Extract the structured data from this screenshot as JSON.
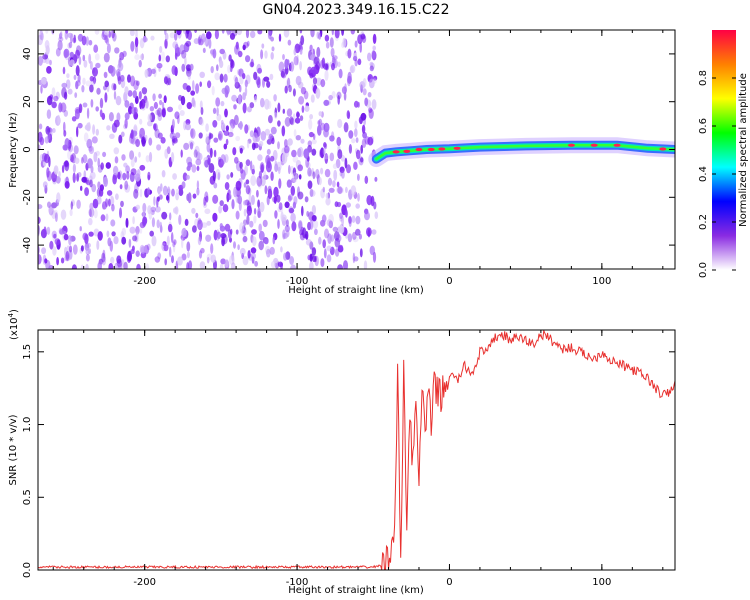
{
  "page_title": "GN04.2023.349.16.15.C22",
  "colors": {
    "signal_line": "#e8312f",
    "scatter_noise": "#7a1cf0",
    "colorbar_top": "#ff0044",
    "colorbar_bottom": "#ffffff"
  },
  "chart_data": [
    {
      "type": "heatmap",
      "title": "GN04.2023.349.16.15.C22",
      "xlabel": "Height of straight line (km)",
      "ylabel": "Frequency (Hz)",
      "xlim": [
        -270,
        148
      ],
      "ylim": [
        -50,
        50
      ],
      "xticks": [
        -200,
        -100,
        0,
        100
      ],
      "yticks": [
        -40,
        -20,
        0,
        20,
        40
      ],
      "tick_labels_x": [
        "-200",
        "-100",
        "0",
        "100"
      ],
      "tick_labels_y": [
        "-40",
        "-20",
        "0",
        "20",
        "40"
      ],
      "noise_region_x": [
        -270,
        -48
      ],
      "trace": {
        "x": [
          -48,
          -42,
          -35,
          -25,
          -15,
          0,
          20,
          50,
          80,
          110,
          130,
          148
        ],
        "y": [
          -4,
          -1.5,
          -1,
          -0.5,
          0,
          0.3,
          1,
          1.5,
          1.8,
          1.8,
          0.5,
          0
        ]
      },
      "colorbar": {
        "label": "Normalized spectral amplitude",
        "range": [
          0,
          1
        ],
        "ticks": [
          0.0,
          0.2,
          0.4,
          0.6,
          0.8
        ],
        "tick_labels": [
          "0.0",
          "0.2",
          "0.4",
          "0.6",
          "0.8"
        ],
        "stops": [
          "#ffffff",
          "#8a2be2",
          "#0000ff",
          "#00ffff",
          "#00ff00",
          "#ffff00",
          "#ff8000",
          "#ff0044"
        ]
      }
    },
    {
      "type": "line",
      "xlabel": "Height of straight line (km)",
      "ylabel": "SNR (10 * v/v)",
      "multiplier_label": "(x10",
      "multiplier_exp": "4",
      "multiplier_close": ")",
      "xlim": [
        -270,
        148
      ],
      "ylim": [
        0,
        1.65
      ],
      "xticks": [
        -200,
        -100,
        0,
        100
      ],
      "yticks": [
        0.0,
        0.5,
        1.0,
        1.5
      ],
      "tick_labels_x": [
        "-200",
        "-100",
        "0",
        "100"
      ],
      "tick_labels_y": [
        "0.0",
        "0.5",
        "1.0",
        "1.5"
      ],
      "series": [
        {
          "x": [
            -270,
            -200,
            -100,
            -50,
            -42,
            -38,
            -36,
            -34,
            -32,
            -30,
            -28,
            -26,
            -24,
            -22,
            -20,
            -18,
            -16,
            -14,
            -12,
            -10,
            -5,
            0,
            5,
            10,
            15,
            20,
            25,
            30,
            35,
            40,
            45,
            50,
            55,
            60,
            65,
            70,
            75,
            80,
            85,
            90,
            95,
            100,
            105,
            110,
            115,
            120,
            125,
            130,
            135,
            140,
            145,
            148
          ],
          "y": [
            0.02,
            0.02,
            0.02,
            0.02,
            0.04,
            0.1,
            0.4,
            1.3,
            0.1,
            1.35,
            0.35,
            1.1,
            0.7,
            1.15,
            0.6,
            1.3,
            0.9,
            1.2,
            1.0,
            1.25,
            1.2,
            1.35,
            1.3,
            1.4,
            1.35,
            1.5,
            1.5,
            1.6,
            1.62,
            1.58,
            1.6,
            1.58,
            1.55,
            1.62,
            1.6,
            1.55,
            1.52,
            1.53,
            1.5,
            1.48,
            1.45,
            1.5,
            1.45,
            1.42,
            1.4,
            1.38,
            1.35,
            1.32,
            1.25,
            1.2,
            1.22,
            1.3
          ]
        }
      ]
    }
  ]
}
